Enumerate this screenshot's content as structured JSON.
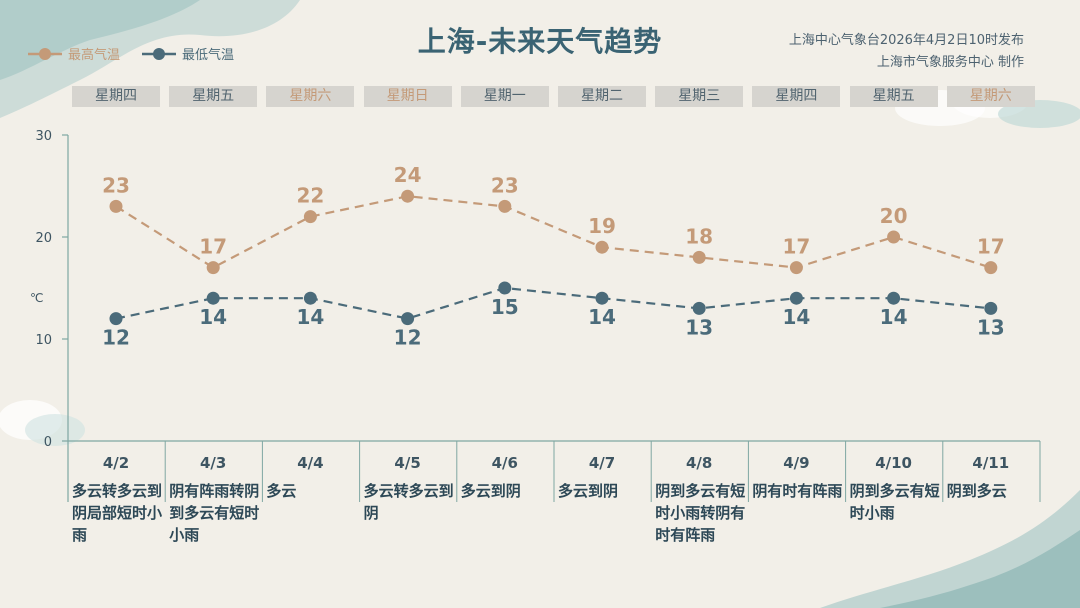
{
  "title": "上海-未来天气趋势",
  "source": {
    "line1": "上海中心气象台2026年4月2日10时发布",
    "line2": "上海市气象服务中心  制作"
  },
  "legend": {
    "high": "最高气温",
    "low": "最低气温"
  },
  "colors": {
    "high": "#c49a78",
    "low": "#4b6b7a",
    "axis": "#7fa7a2"
  },
  "days": [
    {
      "weekday": "星期四",
      "weekend": false,
      "date": "4/2",
      "desc": "多云转多云到阴局部短时小雨"
    },
    {
      "weekday": "星期五",
      "weekend": false,
      "date": "4/3",
      "desc": "阴有阵雨转阴到多云有短时小雨"
    },
    {
      "weekday": "星期六",
      "weekend": true,
      "date": "4/4",
      "desc": "多云"
    },
    {
      "weekday": "星期日",
      "weekend": true,
      "date": "4/5",
      "desc": "多云转多云到阴"
    },
    {
      "weekday": "星期一",
      "weekend": false,
      "date": "4/6",
      "desc": "多云到阴"
    },
    {
      "weekday": "星期二",
      "weekend": false,
      "date": "4/7",
      "desc": "多云到阴"
    },
    {
      "weekday": "星期三",
      "weekend": false,
      "date": "4/8",
      "desc": "阴到多云有短时小雨转阴有时有阵雨"
    },
    {
      "weekday": "星期四",
      "weekend": false,
      "date": "4/9",
      "desc": "阴有时有阵雨"
    },
    {
      "weekday": "星期五",
      "weekend": false,
      "date": "4/10",
      "desc": "阴到多云有短时小雨"
    },
    {
      "weekday": "星期六",
      "weekend": true,
      "date": "4/11",
      "desc": "阴到多云"
    }
  ],
  "chart_data": {
    "type": "line",
    "x": [
      "4/2",
      "4/3",
      "4/4",
      "4/5",
      "4/6",
      "4/7",
      "4/8",
      "4/9",
      "4/10",
      "4/11"
    ],
    "series": [
      {
        "name": "最高气温",
        "values": [
          23,
          17,
          22,
          24,
          23,
          19,
          18,
          17,
          20,
          17
        ]
      },
      {
        "name": "最低气温",
        "values": [
          12,
          14,
          14,
          12,
          15,
          14,
          13,
          14,
          14,
          13
        ]
      }
    ],
    "ylabel": "℃",
    "ylim": [
      0,
      30
    ],
    "yticks": [
      "0",
      "10",
      "20",
      "30"
    ],
    "grid": false,
    "legend": "top-left"
  }
}
